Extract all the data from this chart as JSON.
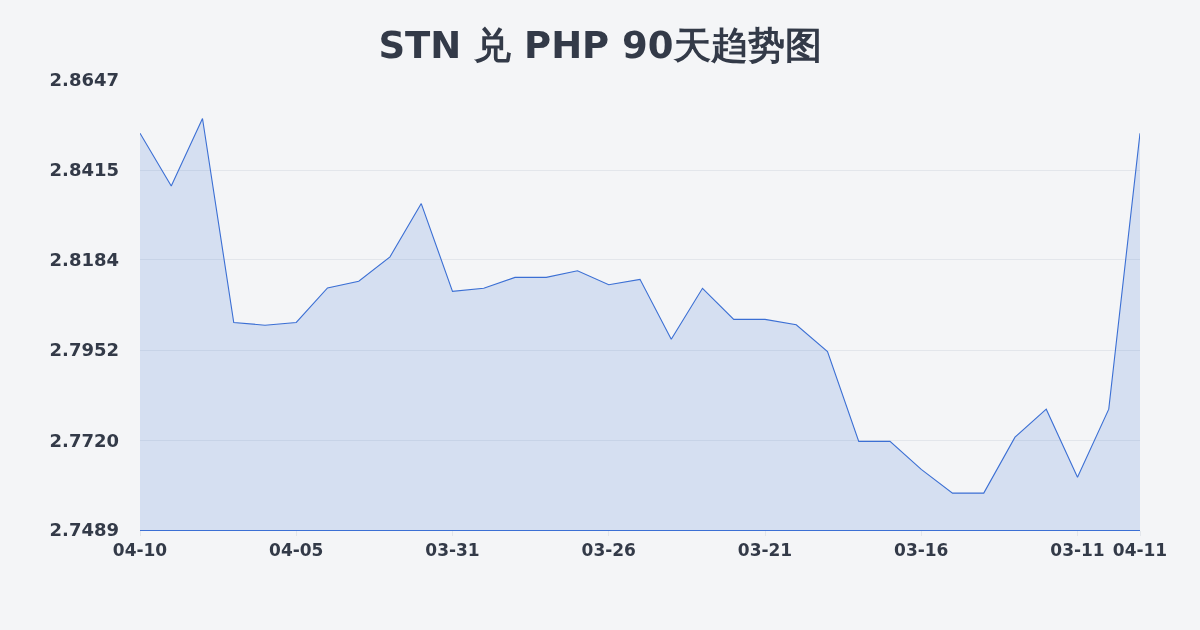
{
  "chart_data": {
    "type": "area",
    "title": "STN 兑 PHP 90天趋势图",
    "categories": [
      "04-10",
      null,
      null,
      null,
      null,
      "04-05",
      null,
      null,
      null,
      null,
      "03-31",
      null,
      null,
      null,
      null,
      "03-26",
      null,
      null,
      null,
      null,
      "03-21",
      null,
      null,
      null,
      null,
      "03-16",
      null,
      null,
      null,
      null,
      "03-11",
      null,
      "04-11"
    ],
    "series": [
      {
        "color": "#3b6fd4",
        "values": [
          2.851,
          2.8374,
          2.8548,
          2.8023,
          2.8016,
          2.8023,
          2.8112,
          2.8129,
          2.8192,
          2.8329,
          2.8103,
          2.8111,
          2.8139,
          2.8139,
          2.8156,
          2.812,
          2.8134,
          2.798,
          2.8111,
          2.8031,
          2.8031,
          2.8017,
          2.7948,
          2.7717,
          2.7717,
          2.7645,
          2.7584,
          2.7584,
          2.7728,
          2.78,
          2.7625,
          2.78,
          2.851
        ]
      }
    ],
    "ylim": [
      2.7489,
      2.8647
    ],
    "yticks": [
      2.7489,
      {
        "value": 2.772,
        "label": "2.7720"
      },
      2.7952,
      2.8184,
      2.8415,
      2.8647
    ],
    "grid": "y"
  }
}
